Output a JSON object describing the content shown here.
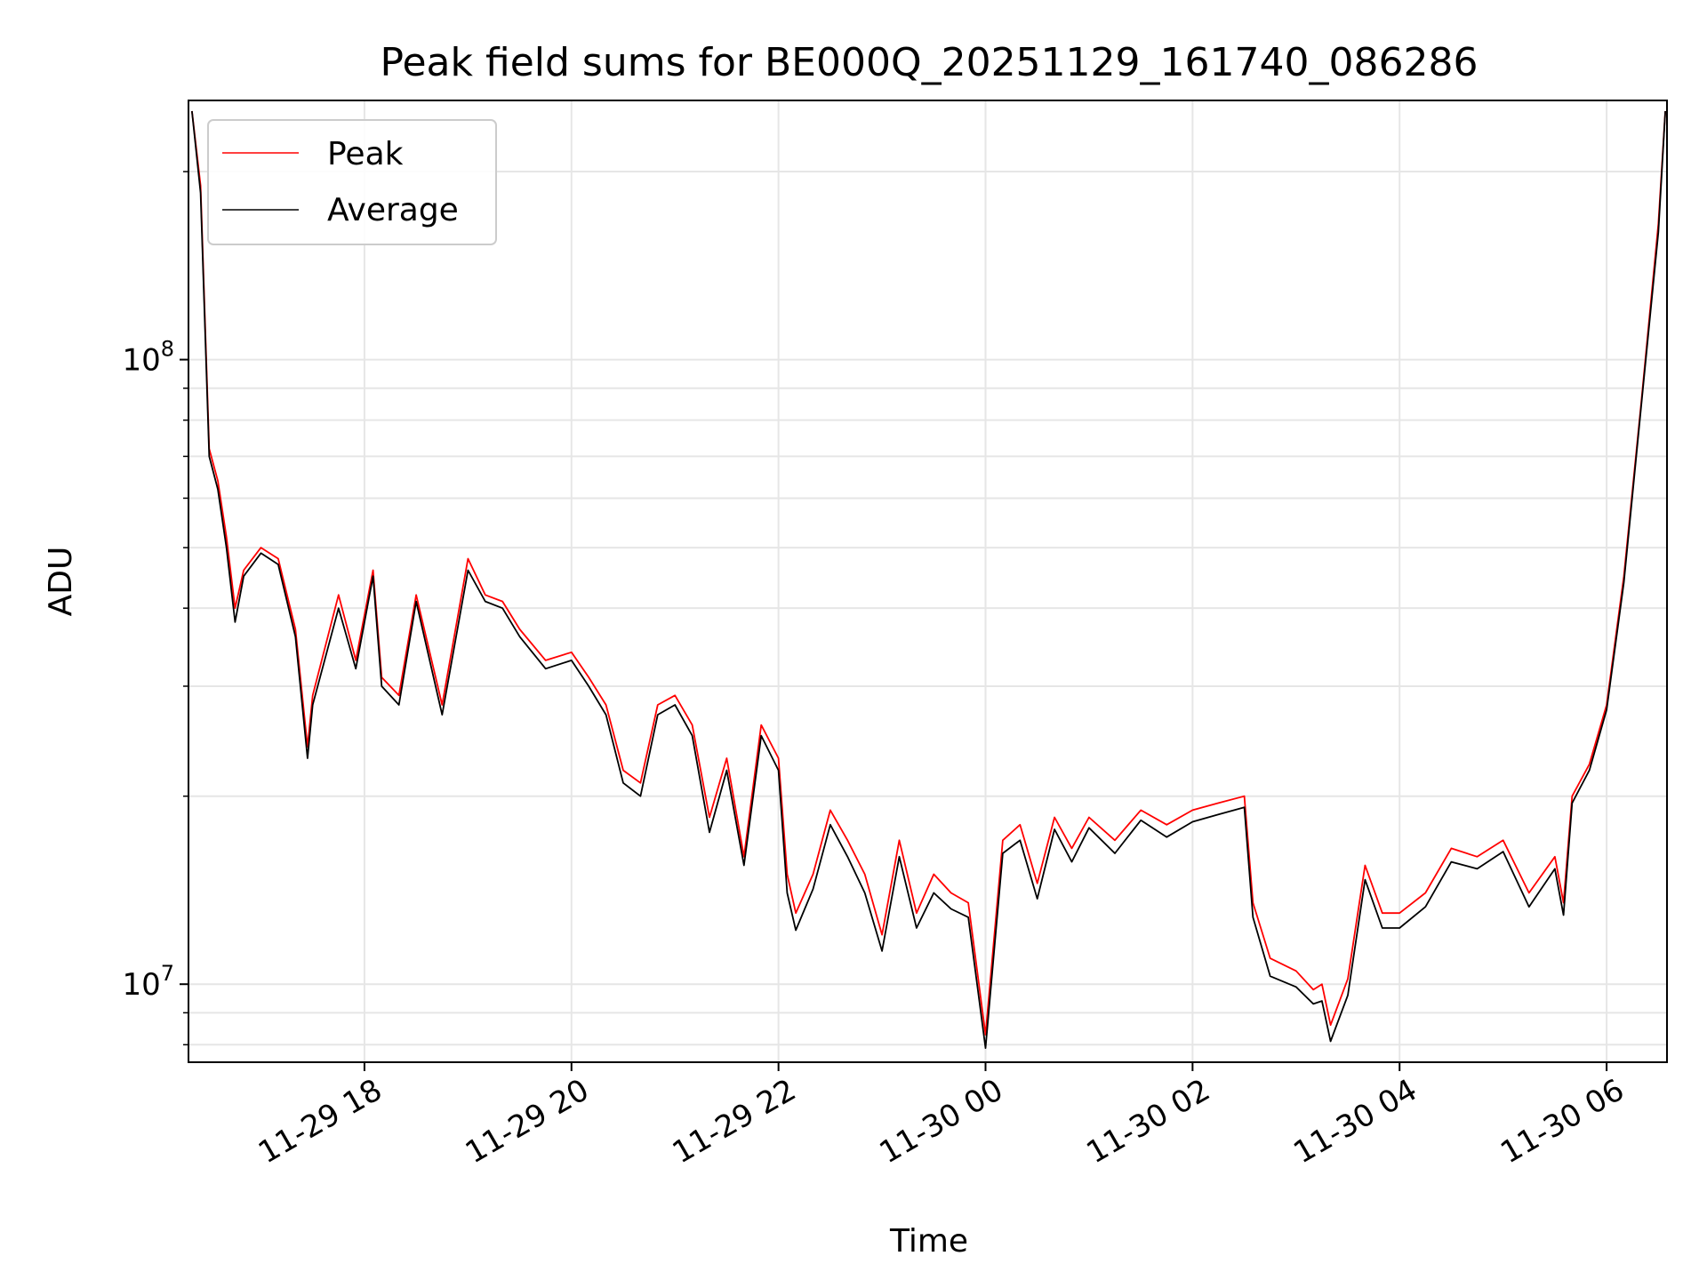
{
  "chart_data": {
    "type": "line",
    "title": "Peak field sums for BE000Q_20251129_161740_086286",
    "xlabel": "Time",
    "ylabel": "ADU",
    "y_scale": "log",
    "xlim": [
      "2025-11-29 16:18",
      "2025-11-30 06:35"
    ],
    "ylim": [
      7500000,
      260000000
    ],
    "grid": true,
    "legend_position": "top-left",
    "x_ticks": [
      {
        "value": "2025-11-29 18:00",
        "label": "11-29 18"
      },
      {
        "value": "2025-11-29 20:00",
        "label": "11-29 20"
      },
      {
        "value": "2025-11-29 22:00",
        "label": "11-29 22"
      },
      {
        "value": "2025-11-30 00:00",
        "label": "11-30 00"
      },
      {
        "value": "2025-11-30 02:00",
        "label": "11-30 02"
      },
      {
        "value": "2025-11-30 04:00",
        "label": "11-30 04"
      },
      {
        "value": "2025-11-30 06:00",
        "label": "11-30 06"
      }
    ],
    "y_ticks": [
      {
        "value": 10000000,
        "label_base": "10",
        "label_exp": "7"
      },
      {
        "value": 100000000,
        "label_base": "10",
        "label_exp": "8"
      }
    ],
    "x": [
      "2025-11-29 16:20",
      "2025-11-29 16:25",
      "2025-11-29 16:30",
      "2025-11-29 16:35",
      "2025-11-29 16:40",
      "2025-11-29 16:45",
      "2025-11-29 16:50",
      "2025-11-29 17:00",
      "2025-11-29 17:10",
      "2025-11-29 17:20",
      "2025-11-29 17:27",
      "2025-11-29 17:30",
      "2025-11-29 17:45",
      "2025-11-29 17:55",
      "2025-11-29 18:05",
      "2025-11-29 18:10",
      "2025-11-29 18:20",
      "2025-11-29 18:30",
      "2025-11-29 18:45",
      "2025-11-29 19:00",
      "2025-11-29 19:10",
      "2025-11-29 19:20",
      "2025-11-29 19:30",
      "2025-11-29 19:45",
      "2025-11-29 20:00",
      "2025-11-29 20:10",
      "2025-11-29 20:20",
      "2025-11-29 20:30",
      "2025-11-29 20:40",
      "2025-11-29 20:50",
      "2025-11-29 21:00",
      "2025-11-29 21:10",
      "2025-11-29 21:20",
      "2025-11-29 21:30",
      "2025-11-29 21:40",
      "2025-11-29 21:50",
      "2025-11-29 22:00",
      "2025-11-29 22:05",
      "2025-11-29 22:10",
      "2025-11-29 22:20",
      "2025-11-29 22:30",
      "2025-11-29 22:40",
      "2025-11-29 22:50",
      "2025-11-29 23:00",
      "2025-11-29 23:10",
      "2025-11-29 23:20",
      "2025-11-29 23:30",
      "2025-11-29 23:40",
      "2025-11-29 23:50",
      "2025-11-30 00:00",
      "2025-11-30 00:10",
      "2025-11-30 00:20",
      "2025-11-30 00:30",
      "2025-11-30 00:40",
      "2025-11-30 00:50",
      "2025-11-30 01:00",
      "2025-11-30 01:15",
      "2025-11-30 01:30",
      "2025-11-30 01:45",
      "2025-11-30 02:00",
      "2025-11-30 02:15",
      "2025-11-30 02:30",
      "2025-11-30 02:35",
      "2025-11-30 02:45",
      "2025-11-30 03:00",
      "2025-11-30 03:10",
      "2025-11-30 03:15",
      "2025-11-30 03:20",
      "2025-11-30 03:30",
      "2025-11-30 03:40",
      "2025-11-30 03:50",
      "2025-11-30 04:00",
      "2025-11-30 04:15",
      "2025-11-30 04:30",
      "2025-11-30 04:45",
      "2025-11-30 05:00",
      "2025-11-30 05:15",
      "2025-11-30 05:30",
      "2025-11-30 05:35",
      "2025-11-30 05:40",
      "2025-11-30 05:50",
      "2025-11-30 06:00",
      "2025-11-30 06:10",
      "2025-11-30 06:20",
      "2025-11-30 06:30",
      "2025-11-30 06:34"
    ],
    "series": [
      {
        "name": "Peak",
        "color": "#ff0000",
        "values": [
          250000000,
          190000000,
          72000000,
          64000000,
          52000000,
          40000000,
          46000000,
          50000000,
          48000000,
          37000000,
          24000000,
          29000000,
          42000000,
          33000000,
          46000000,
          31000000,
          29000000,
          42000000,
          28000000,
          48000000,
          42000000,
          41000000,
          37000000,
          33000000,
          34000000,
          31000000,
          28000000,
          22000000,
          21000000,
          28000000,
          29000000,
          26000000,
          18500000,
          23000000,
          16000000,
          26000000,
          23000000,
          15000000,
          13000000,
          15000000,
          19000000,
          17000000,
          15000000,
          12000000,
          17000000,
          13000000,
          15000000,
          14000000,
          13500000,
          8300000,
          17000000,
          18000000,
          14500000,
          18500000,
          16500000,
          18500000,
          17000000,
          19000000,
          18000000,
          19000000,
          19500000,
          20000000,
          13500000,
          11000000,
          10500000,
          9800000,
          10000000,
          8600000,
          10200000,
          15500000,
          13000000,
          13000000,
          14000000,
          16500000,
          16000000,
          17000000,
          14000000,
          16000000,
          13500000,
          20000000,
          22500000,
          28000000,
          45000000,
          85000000,
          165000000,
          250000000
        ]
      },
      {
        "name": "Average",
        "color": "#000000",
        "values": [
          250000000,
          185000000,
          70000000,
          62000000,
          50000000,
          38000000,
          45000000,
          49000000,
          47000000,
          36000000,
          23000000,
          28000000,
          40000000,
          32000000,
          45000000,
          30000000,
          28000000,
          41000000,
          27000000,
          46000000,
          41000000,
          40000000,
          36000000,
          32000000,
          33000000,
          30000000,
          27000000,
          21000000,
          20000000,
          27000000,
          28000000,
          25000000,
          17500000,
          22000000,
          15500000,
          25000000,
          22000000,
          14000000,
          12200000,
          14200000,
          18000000,
          16000000,
          14000000,
          11300000,
          16000000,
          12300000,
          14000000,
          13200000,
          12800000,
          7900000,
          16200000,
          17000000,
          13700000,
          17700000,
          15700000,
          17800000,
          16200000,
          18300000,
          17200000,
          18200000,
          18700000,
          19200000,
          12800000,
          10300000,
          9900000,
          9300000,
          9400000,
          8100000,
          9600000,
          14700000,
          12300000,
          12300000,
          13300000,
          15700000,
          15300000,
          16300000,
          13300000,
          15300000,
          12900000,
          19500000,
          22000000,
          27500000,
          44000000,
          84000000,
          160000000,
          250000000
        ]
      }
    ]
  }
}
